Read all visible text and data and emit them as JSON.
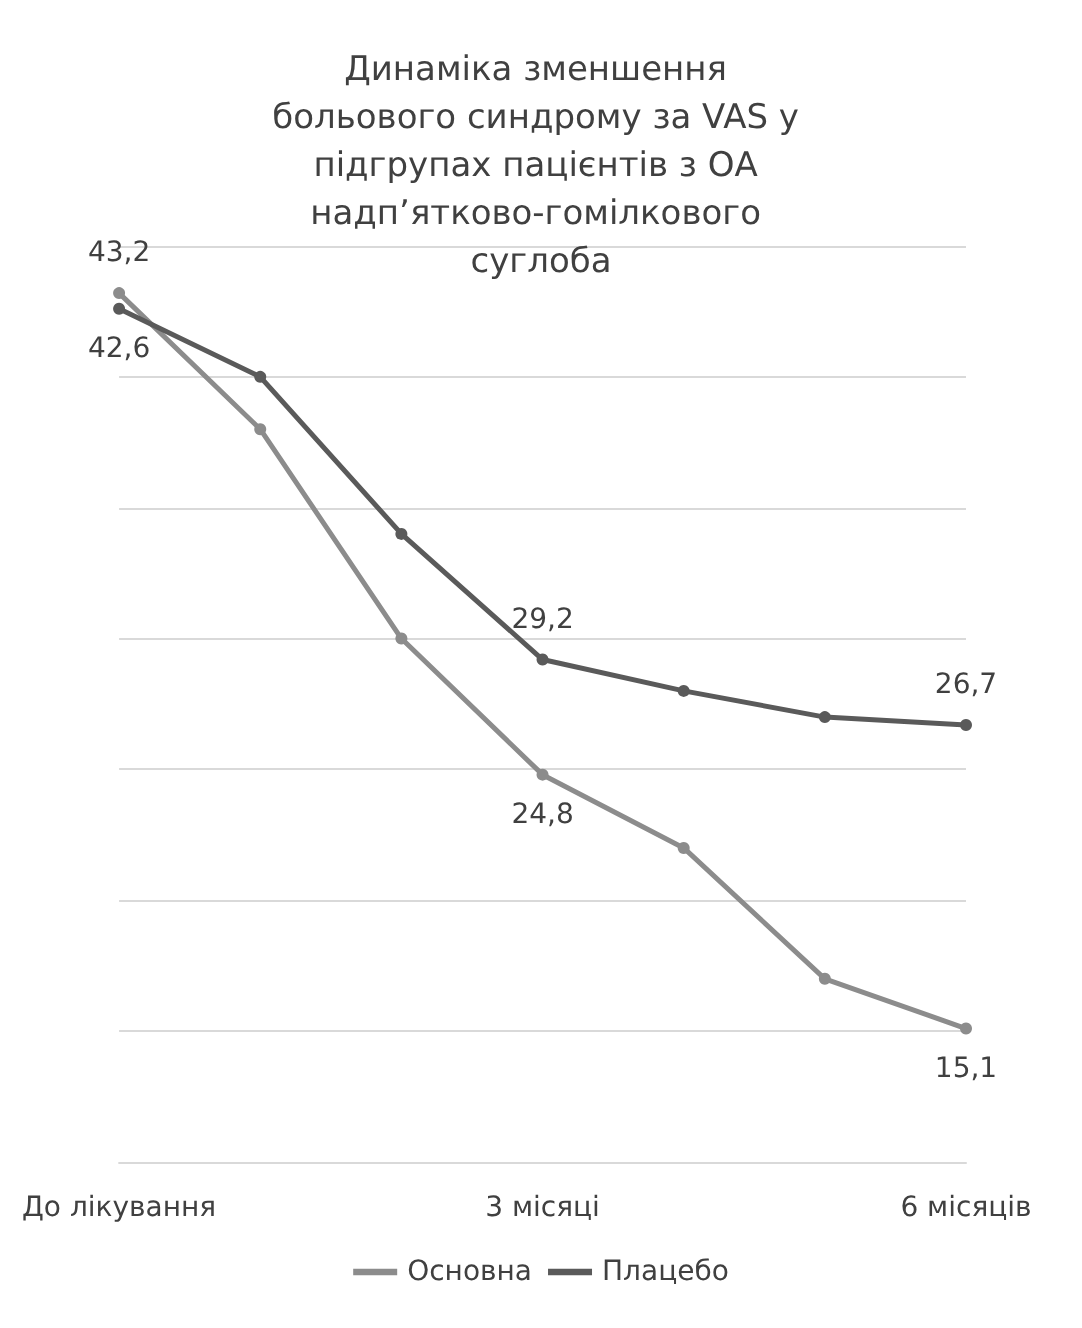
{
  "chart_data": {
    "type": "line",
    "title": "Динаміка зменшення больового синдрому за VAS у підгрупах пацієнтів з ОА надп’ятково-гомілкового суглоба",
    "categories": [
      "До лікування",
      null,
      null,
      "3 місяці",
      null,
      null,
      "6 місяців"
    ],
    "series": [
      {
        "name": "Основна",
        "color": "#8c8c8c",
        "values": [
          43.2,
          38.0,
          30.0,
          24.8,
          22.0,
          17.0,
          15.1
        ],
        "value_labels": [
          "43,2",
          null,
          null,
          "24,8",
          null,
          null,
          "15,1"
        ]
      },
      {
        "name": "Плацебо",
        "color": "#5a5a5a",
        "values": [
          42.6,
          40.0,
          34.0,
          29.2,
          28.0,
          27.0,
          26.7
        ],
        "value_labels": [
          "42,6",
          null,
          null,
          "29,2",
          null,
          null,
          "26,7"
        ]
      }
    ],
    "ylim": [
      10,
      45
    ],
    "yticks": [
      {
        "value": 10,
        "label": null
      },
      {
        "value": 15,
        "label": null
      },
      {
        "value": 20,
        "label": null
      },
      {
        "value": 25,
        "label": null
      },
      {
        "value": 30,
        "label": null
      },
      {
        "value": 35,
        "label": null
      },
      {
        "value": 40,
        "label": null
      },
      {
        "value": 45,
        "label": null
      }
    ],
    "tick_labels": "x",
    "grid": "y",
    "legend": "bottom",
    "marker": "circle",
    "line_style": "solid"
  }
}
